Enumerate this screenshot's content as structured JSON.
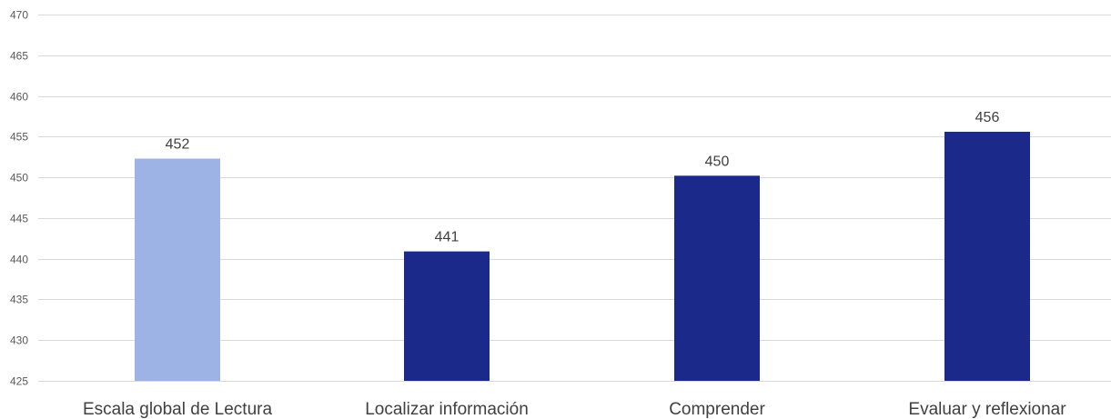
{
  "chart_data": {
    "type": "bar",
    "title": "",
    "xlabel": "",
    "ylabel": "",
    "categories": [
      "Escala global de Lectura",
      "Localizar información",
      "Comprender",
      "Evaluar y reflexionar"
    ],
    "values": [
      452.3,
      440.9,
      450.2,
      455.6
    ],
    "data_labels": [
      "452",
      "441",
      "450",
      "456"
    ],
    "bar_colors": [
      "#9db3e6",
      "#1b2a8a",
      "#1b2a8a",
      "#1b2a8a"
    ],
    "ylim": [
      425,
      470
    ],
    "yticks": [
      425,
      430,
      435,
      440,
      445,
      450,
      455,
      460,
      465,
      470
    ],
    "grid": true,
    "legend": "none"
  }
}
